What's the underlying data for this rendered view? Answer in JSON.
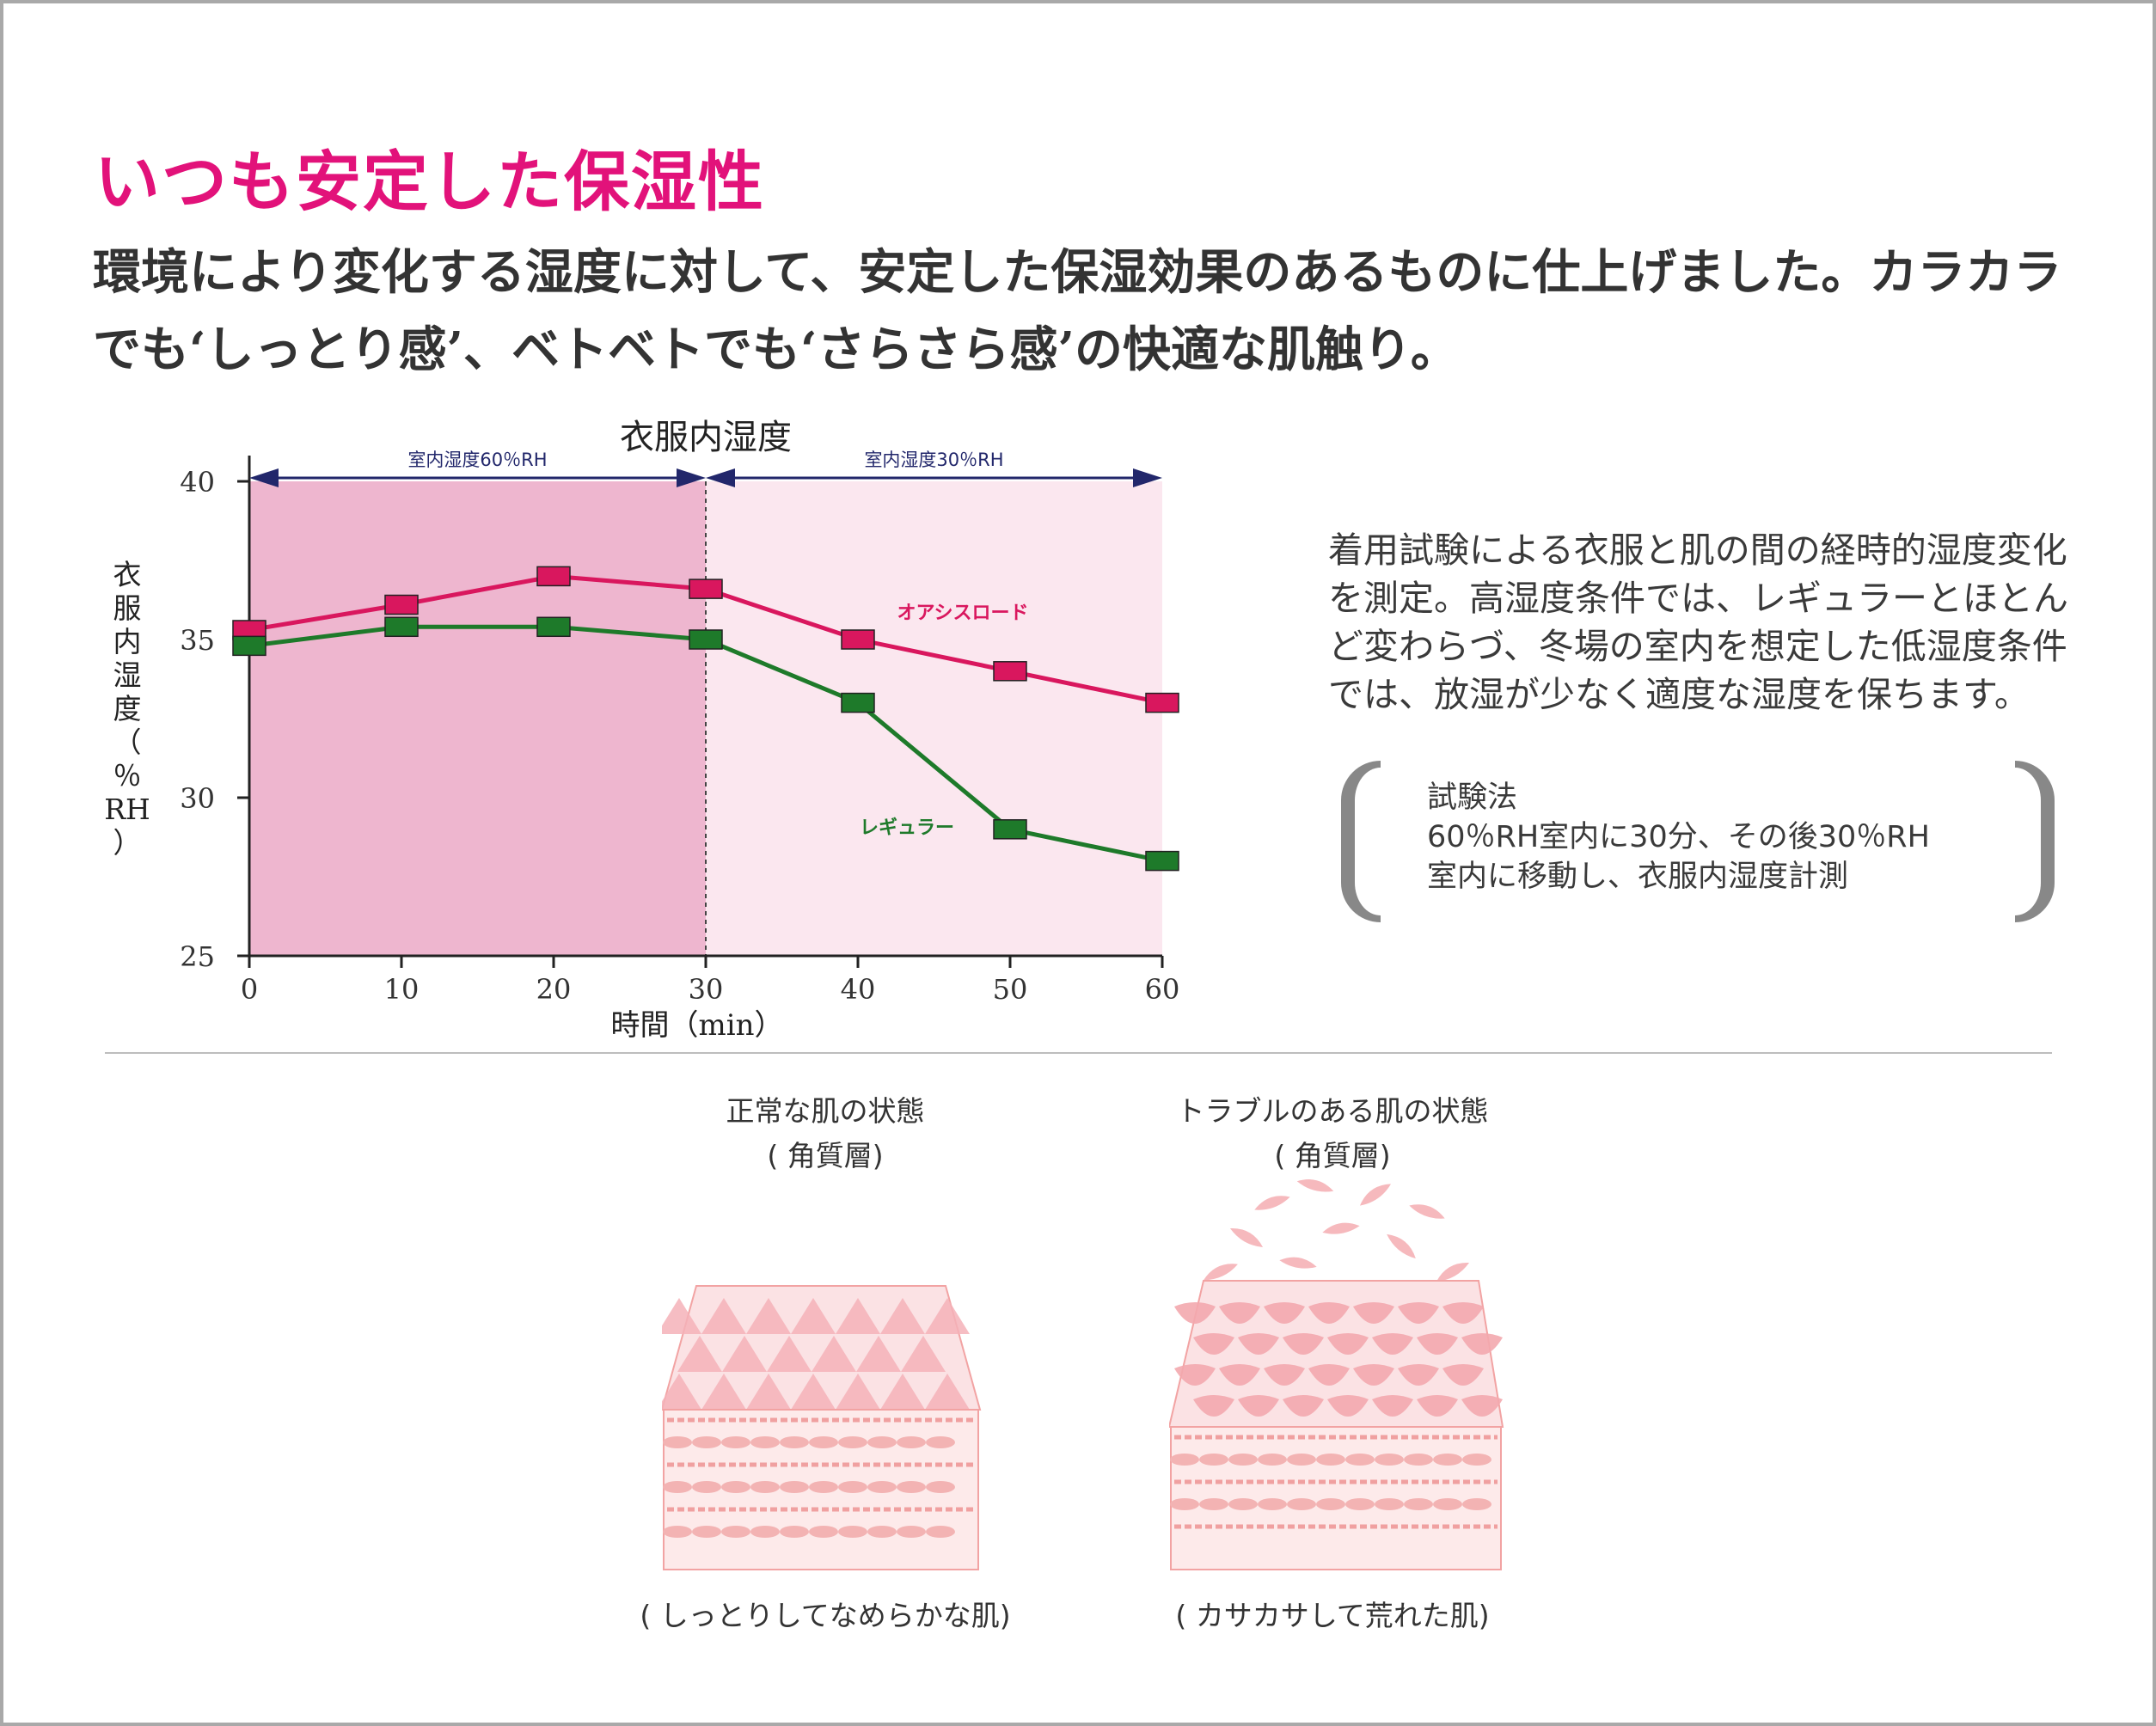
{
  "headline": "いつも安定した保湿性",
  "intro": "環境により変化する湿度に対して、安定した保湿効果のあるものに仕上げました。カラカラでも‘しっとり感’、ベトベトでも‘さらさら感’の快適な肌触り。",
  "description": "着用試験による衣服と肌の間の経時的湿度変化を測定。高湿度条件では、レギュラーとほとんど変わらづ、冬場の室内を想定した低湿度条件では、放湿が少なく適度な湿度を保ちます。",
  "method": {
    "title": "試験法",
    "line1": "60％RH室内に30分、その後30％RH",
    "line2": "室内に移動し、衣服内湿度計測"
  },
  "colors": {
    "headline": "#e2127a",
    "oasis": "#d9175e",
    "regular": "#1e7a2a",
    "high_humidity_bg": "#eeb6cf",
    "low_humidity_bg": "#fbe7ef",
    "arrow": "#22276b"
  },
  "chart_data": {
    "type": "line",
    "title": "衣服内湿度",
    "xlabel": "時間（min）",
    "ylabel": "衣服内湿度（％RH）",
    "ylabel_chars": [
      "衣",
      "服",
      "内",
      "湿",
      "度",
      "（",
      "％",
      "RH",
      "）"
    ],
    "x_ticks": [
      0,
      10,
      20,
      30,
      40,
      50,
      60
    ],
    "y_ticks": [
      25,
      30,
      35,
      40
    ],
    "xlim": [
      0,
      60
    ],
    "ylim": [
      25,
      40
    ],
    "grid": false,
    "regions": [
      {
        "label": "室内湿度60％RH",
        "x_range": [
          0,
          30
        ]
      },
      {
        "label": "室内湿度30％RH",
        "x_range": [
          30,
          60
        ]
      }
    ],
    "series": [
      {
        "name": "オアシスロード",
        "x": [
          0,
          10,
          20,
          30,
          40,
          50,
          60
        ],
        "values": [
          35.3,
          36.1,
          37.0,
          36.6,
          35.0,
          34.0,
          33.0
        ]
      },
      {
        "name": "レギュラー",
        "x": [
          0,
          10,
          20,
          30,
          40,
          50,
          60
        ],
        "values": [
          34.8,
          35.4,
          35.4,
          35.0,
          33.0,
          29.0,
          28.0
        ]
      }
    ]
  },
  "skin": {
    "normal": {
      "title": "正常な肌の状態",
      "subtitle": "( 角質層)",
      "caption": "( しっとりしてなめらかな肌)"
    },
    "trouble": {
      "title": "トラブルのある肌の状態",
      "subtitle": "( 角質層)",
      "caption": "( カサカサして荒れた肌)"
    }
  }
}
